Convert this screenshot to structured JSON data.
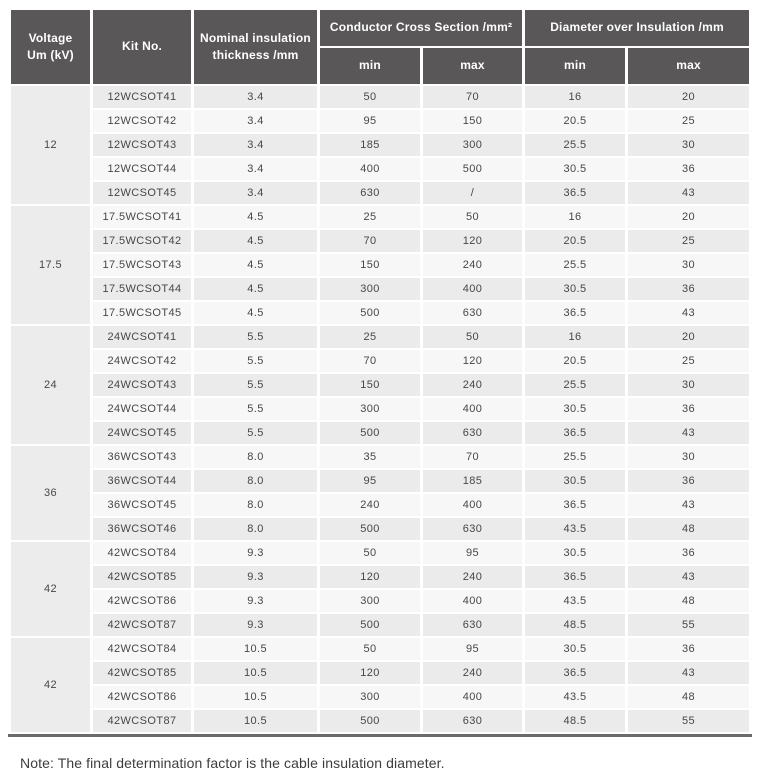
{
  "colors": {
    "header_bg": "#595757",
    "header_text": "#ffffff",
    "row_dark": "#ebebeb",
    "row_light": "#f7f7f7",
    "group_cell_bg": "#ececec",
    "body_text": "#474747",
    "bottom_rule": "#6a6a6a"
  },
  "table": {
    "header": {
      "voltage": "Voltage\nUm (kV)",
      "kit_no": "Kit No.",
      "thickness": "Nominal insulation\nthickness /mm",
      "conductor_group": "Conductor Cross Section /mm²",
      "diameter_group": "Diameter over Insulation /mm",
      "sub_headers": [
        "min",
        "max",
        "min",
        "max"
      ]
    },
    "groups": [
      {
        "voltage": "12",
        "rows": [
          {
            "kit": "12WCSOT41",
            "thickness": "3.4",
            "ccs_min": "50",
            "ccs_max": "70",
            "dia_min": "16",
            "dia_max": "20"
          },
          {
            "kit": "12WCSOT42",
            "thickness": "3.4",
            "ccs_min": "95",
            "ccs_max": "150",
            "dia_min": "20.5",
            "dia_max": "25"
          },
          {
            "kit": "12WCSOT43",
            "thickness": "3.4",
            "ccs_min": "185",
            "ccs_max": "300",
            "dia_min": "25.5",
            "dia_max": "30"
          },
          {
            "kit": "12WCSOT44",
            "thickness": "3.4",
            "ccs_min": "400",
            "ccs_max": "500",
            "dia_min": "30.5",
            "dia_max": "36"
          },
          {
            "kit": "12WCSOT45",
            "thickness": "3.4",
            "ccs_min": "630",
            "ccs_max": "/",
            "dia_min": "36.5",
            "dia_max": "43"
          }
        ]
      },
      {
        "voltage": "17.5",
        "rows": [
          {
            "kit": "17.5WCSOT41",
            "thickness": "4.5",
            "ccs_min": "25",
            "ccs_max": "50",
            "dia_min": "16",
            "dia_max": "20"
          },
          {
            "kit": "17.5WCSOT42",
            "thickness": "4.5",
            "ccs_min": "70",
            "ccs_max": "120",
            "dia_min": "20.5",
            "dia_max": "25"
          },
          {
            "kit": "17.5WCSOT43",
            "thickness": "4.5",
            "ccs_min": "150",
            "ccs_max": "240",
            "dia_min": "25.5",
            "dia_max": "30"
          },
          {
            "kit": "17.5WCSOT44",
            "thickness": "4.5",
            "ccs_min": "300",
            "ccs_max": "400",
            "dia_min": "30.5",
            "dia_max": "36"
          },
          {
            "kit": "17.5WCSOT45",
            "thickness": "4.5",
            "ccs_min": "500",
            "ccs_max": "630",
            "dia_min": "36.5",
            "dia_max": "43"
          }
        ]
      },
      {
        "voltage": "24",
        "rows": [
          {
            "kit": "24WCSOT41",
            "thickness": "5.5",
            "ccs_min": "25",
            "ccs_max": "50",
            "dia_min": "16",
            "dia_max": "20"
          },
          {
            "kit": "24WCSOT42",
            "thickness": "5.5",
            "ccs_min": "70",
            "ccs_max": "120",
            "dia_min": "20.5",
            "dia_max": "25"
          },
          {
            "kit": "24WCSOT43",
            "thickness": "5.5",
            "ccs_min": "150",
            "ccs_max": "240",
            "dia_min": "25.5",
            "dia_max": "30"
          },
          {
            "kit": "24WCSOT44",
            "thickness": "5.5",
            "ccs_min": "300",
            "ccs_max": "400",
            "dia_min": "30.5",
            "dia_max": "36"
          },
          {
            "kit": "24WCSOT45",
            "thickness": "5.5",
            "ccs_min": "500",
            "ccs_max": "630",
            "dia_min": "36.5",
            "dia_max": "43"
          }
        ]
      },
      {
        "voltage": "36",
        "rows": [
          {
            "kit": "36WCSOT43",
            "thickness": "8.0",
            "ccs_min": "35",
            "ccs_max": "70",
            "dia_min": "25.5",
            "dia_max": "30"
          },
          {
            "kit": "36WCSOT44",
            "thickness": "8.0",
            "ccs_min": "95",
            "ccs_max": "185",
            "dia_min": "30.5",
            "dia_max": "36"
          },
          {
            "kit": "36WCSOT45",
            "thickness": "8.0",
            "ccs_min": "240",
            "ccs_max": "400",
            "dia_min": "36.5",
            "dia_max": "43"
          },
          {
            "kit": "36WCSOT46",
            "thickness": "8.0",
            "ccs_min": "500",
            "ccs_max": "630",
            "dia_min": "43.5",
            "dia_max": "48"
          }
        ]
      },
      {
        "voltage": "42",
        "rows": [
          {
            "kit": "42WCSOT84",
            "thickness": "9.3",
            "ccs_min": "50",
            "ccs_max": "95",
            "dia_min": "30.5",
            "dia_max": "36"
          },
          {
            "kit": "42WCSOT85",
            "thickness": "9.3",
            "ccs_min": "120",
            "ccs_max": "240",
            "dia_min": "36.5",
            "dia_max": "43"
          },
          {
            "kit": "42WCSOT86",
            "thickness": "9.3",
            "ccs_min": "300",
            "ccs_max": "400",
            "dia_min": "43.5",
            "dia_max": "48"
          },
          {
            "kit": "42WCSOT87",
            "thickness": "9.3",
            "ccs_min": "500",
            "ccs_max": "630",
            "dia_min": "48.5",
            "dia_max": "55"
          }
        ]
      },
      {
        "voltage": "42",
        "rows": [
          {
            "kit": "42WCSOT84",
            "thickness": "10.5",
            "ccs_min": "50",
            "ccs_max": "95",
            "dia_min": "30.5",
            "dia_max": "36"
          },
          {
            "kit": "42WCSOT85",
            "thickness": "10.5",
            "ccs_min": "120",
            "ccs_max": "240",
            "dia_min": "36.5",
            "dia_max": "43"
          },
          {
            "kit": "42WCSOT86",
            "thickness": "10.5",
            "ccs_min": "300",
            "ccs_max": "400",
            "dia_min": "43.5",
            "dia_max": "48"
          },
          {
            "kit": "42WCSOT87",
            "thickness": "10.5",
            "ccs_min": "500",
            "ccs_max": "630",
            "dia_min": "48.5",
            "dia_max": "55"
          }
        ]
      }
    ]
  },
  "note": "Note: The final determination factor is the cable insulation diameter."
}
